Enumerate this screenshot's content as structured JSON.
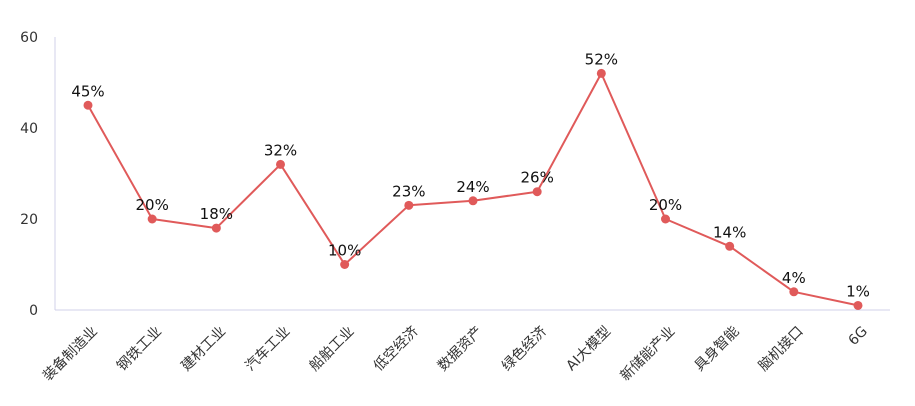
{
  "chart_data": {
    "type": "line",
    "categories": [
      "装备制造业",
      "钢铁工业",
      "建材工业",
      "汽车工业",
      "船舶工业",
      "低空经济",
      "数据资产",
      "绿色经济",
      "AI大模型",
      "新储能产业",
      "具身智能",
      "脑机接口",
      "6G"
    ],
    "values": [
      45,
      20,
      18,
      32,
      10,
      23,
      24,
      26,
      52,
      20,
      14,
      4,
      1
    ],
    "data_labels": [
      "45%",
      "20%",
      "18%",
      "32%",
      "10%",
      "23%",
      "24%",
      "26%",
      "52%",
      "20%",
      "14%",
      "4%",
      "1%"
    ],
    "ylim": [
      0,
      60
    ],
    "yticks": [
      "0",
      "20",
      "40",
      "60"
    ],
    "grid": false,
    "legend": "none",
    "colors": {
      "line": "#e05a5a",
      "axis": "#d0d0e8"
    }
  }
}
